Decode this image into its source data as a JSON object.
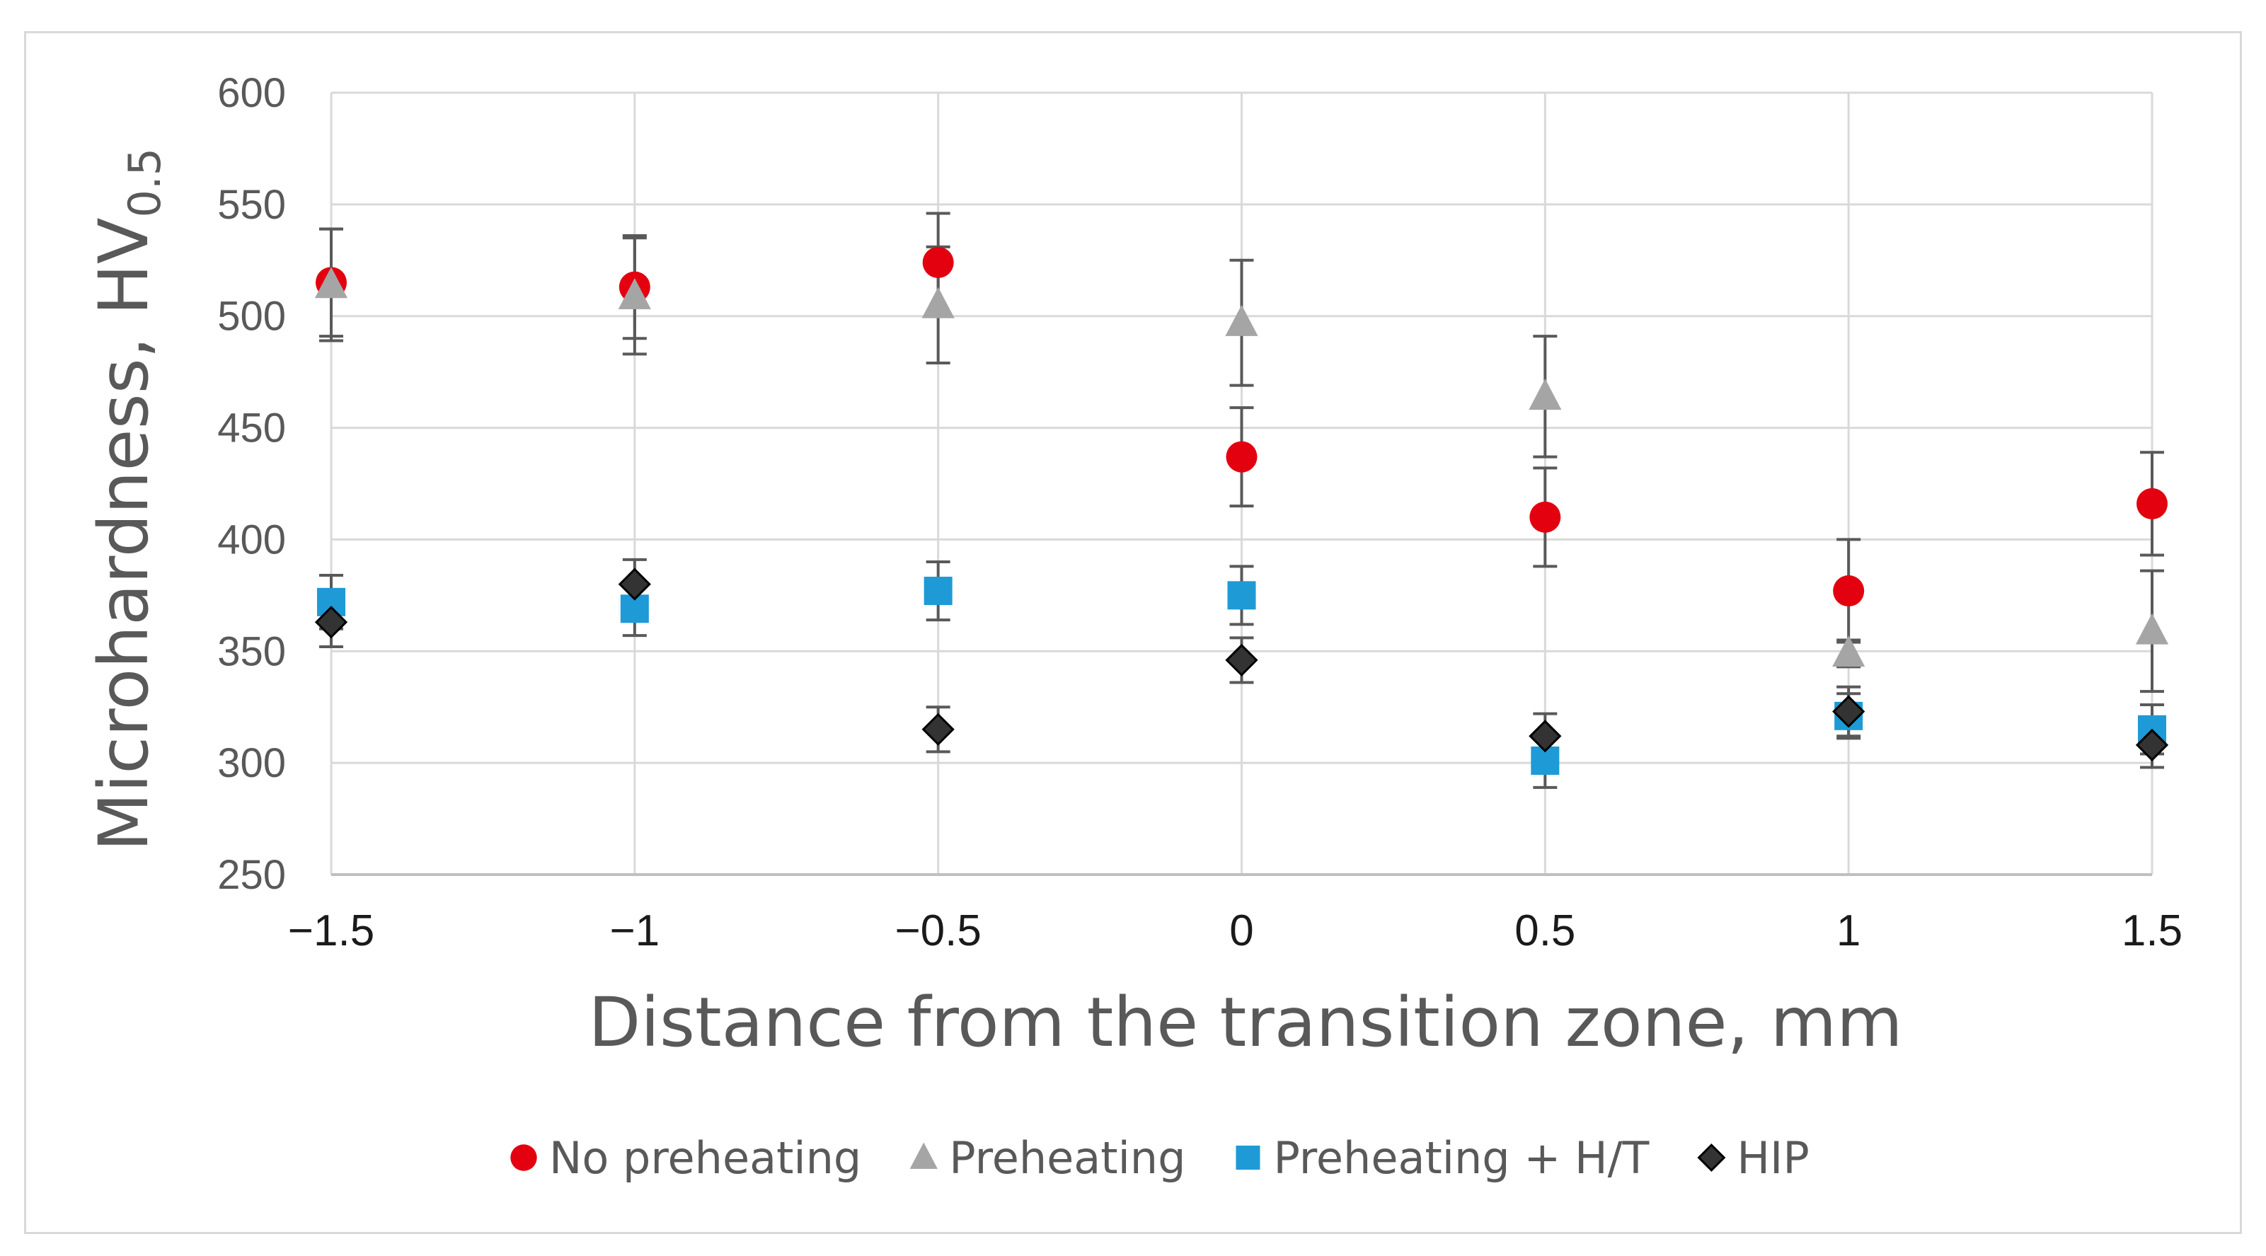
{
  "chart_data": {
    "type": "scatter",
    "title": "",
    "xlabel": "Distance from the transition zone, mm",
    "ylabel_main": "Microhardness, HV",
    "ylabel_sub": "0.5",
    "x": [
      -1.5,
      -1,
      -0.5,
      0,
      0.5,
      1,
      1.5
    ],
    "x_tick_labels": [
      "−1.5",
      "−1",
      "−0.5",
      "0",
      "0.5",
      "1",
      "1.5"
    ],
    "y_ticks": [
      250,
      300,
      350,
      400,
      450,
      500,
      550,
      600
    ],
    "xlim": [
      -1.5,
      1.5
    ],
    "ylim": [
      250,
      600
    ],
    "grid": true,
    "legend_position": "bottom",
    "series": [
      {
        "name": "No preheating",
        "marker": "circle",
        "color": "#e3000f",
        "values": [
          515,
          513,
          524,
          437,
          410,
          377,
          416
        ],
        "errors": [
          24,
          23,
          22,
          22,
          22,
          23,
          23
        ]
      },
      {
        "name": "Preheating",
        "marker": "triangle",
        "color": "#a5a5a5",
        "values": [
          514,
          509,
          505,
          497,
          464,
          349,
          359
        ],
        "errors": [
          25,
          26,
          26,
          28,
          27,
          6,
          27
        ]
      },
      {
        "name": "Preheating + H/T",
        "marker": "square",
        "color": "#1e9ad6",
        "values": [
          372,
          369,
          377,
          375,
          301,
          321,
          315
        ],
        "errors": [
          12,
          12,
          13,
          13,
          12,
          10,
          11
        ]
      },
      {
        "name": "HIP",
        "marker": "diamond",
        "color": "#333333",
        "values": [
          363,
          380,
          315,
          346,
          312,
          323,
          308
        ],
        "errors": [
          11,
          11,
          10,
          10,
          10,
          11,
          10
        ]
      }
    ]
  }
}
